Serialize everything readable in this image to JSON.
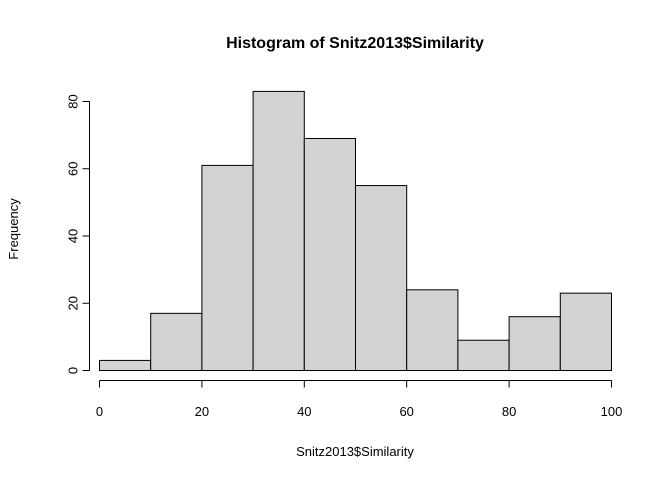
{
  "chart_data": {
    "type": "bar",
    "title": "Histogram of Snitz2013$Similarity",
    "xlabel": "Snitz2013$Similarity",
    "ylabel": "Frequency",
    "bins": [
      {
        "start": 0,
        "end": 10,
        "count": 3
      },
      {
        "start": 10,
        "end": 20,
        "count": 17
      },
      {
        "start": 20,
        "end": 30,
        "count": 61
      },
      {
        "start": 30,
        "end": 40,
        "count": 83
      },
      {
        "start": 40,
        "end": 50,
        "count": 69
      },
      {
        "start": 50,
        "end": 60,
        "count": 55
      },
      {
        "start": 60,
        "end": 70,
        "count": 24
      },
      {
        "start": 70,
        "end": 80,
        "count": 9
      },
      {
        "start": 80,
        "end": 90,
        "count": 16
      },
      {
        "start": 90,
        "end": 100,
        "count": 23
      }
    ],
    "xlim": [
      0,
      100
    ],
    "ylim": [
      0,
      83
    ],
    "x_ticks": [
      "0",
      "20",
      "40",
      "60",
      "80",
      "100"
    ],
    "y_ticks": [
      "0",
      "20",
      "40",
      "60",
      "80"
    ],
    "bar_fill": "#d3d3d3",
    "bar_stroke": "#000000",
    "grid": false,
    "legend": "none"
  }
}
